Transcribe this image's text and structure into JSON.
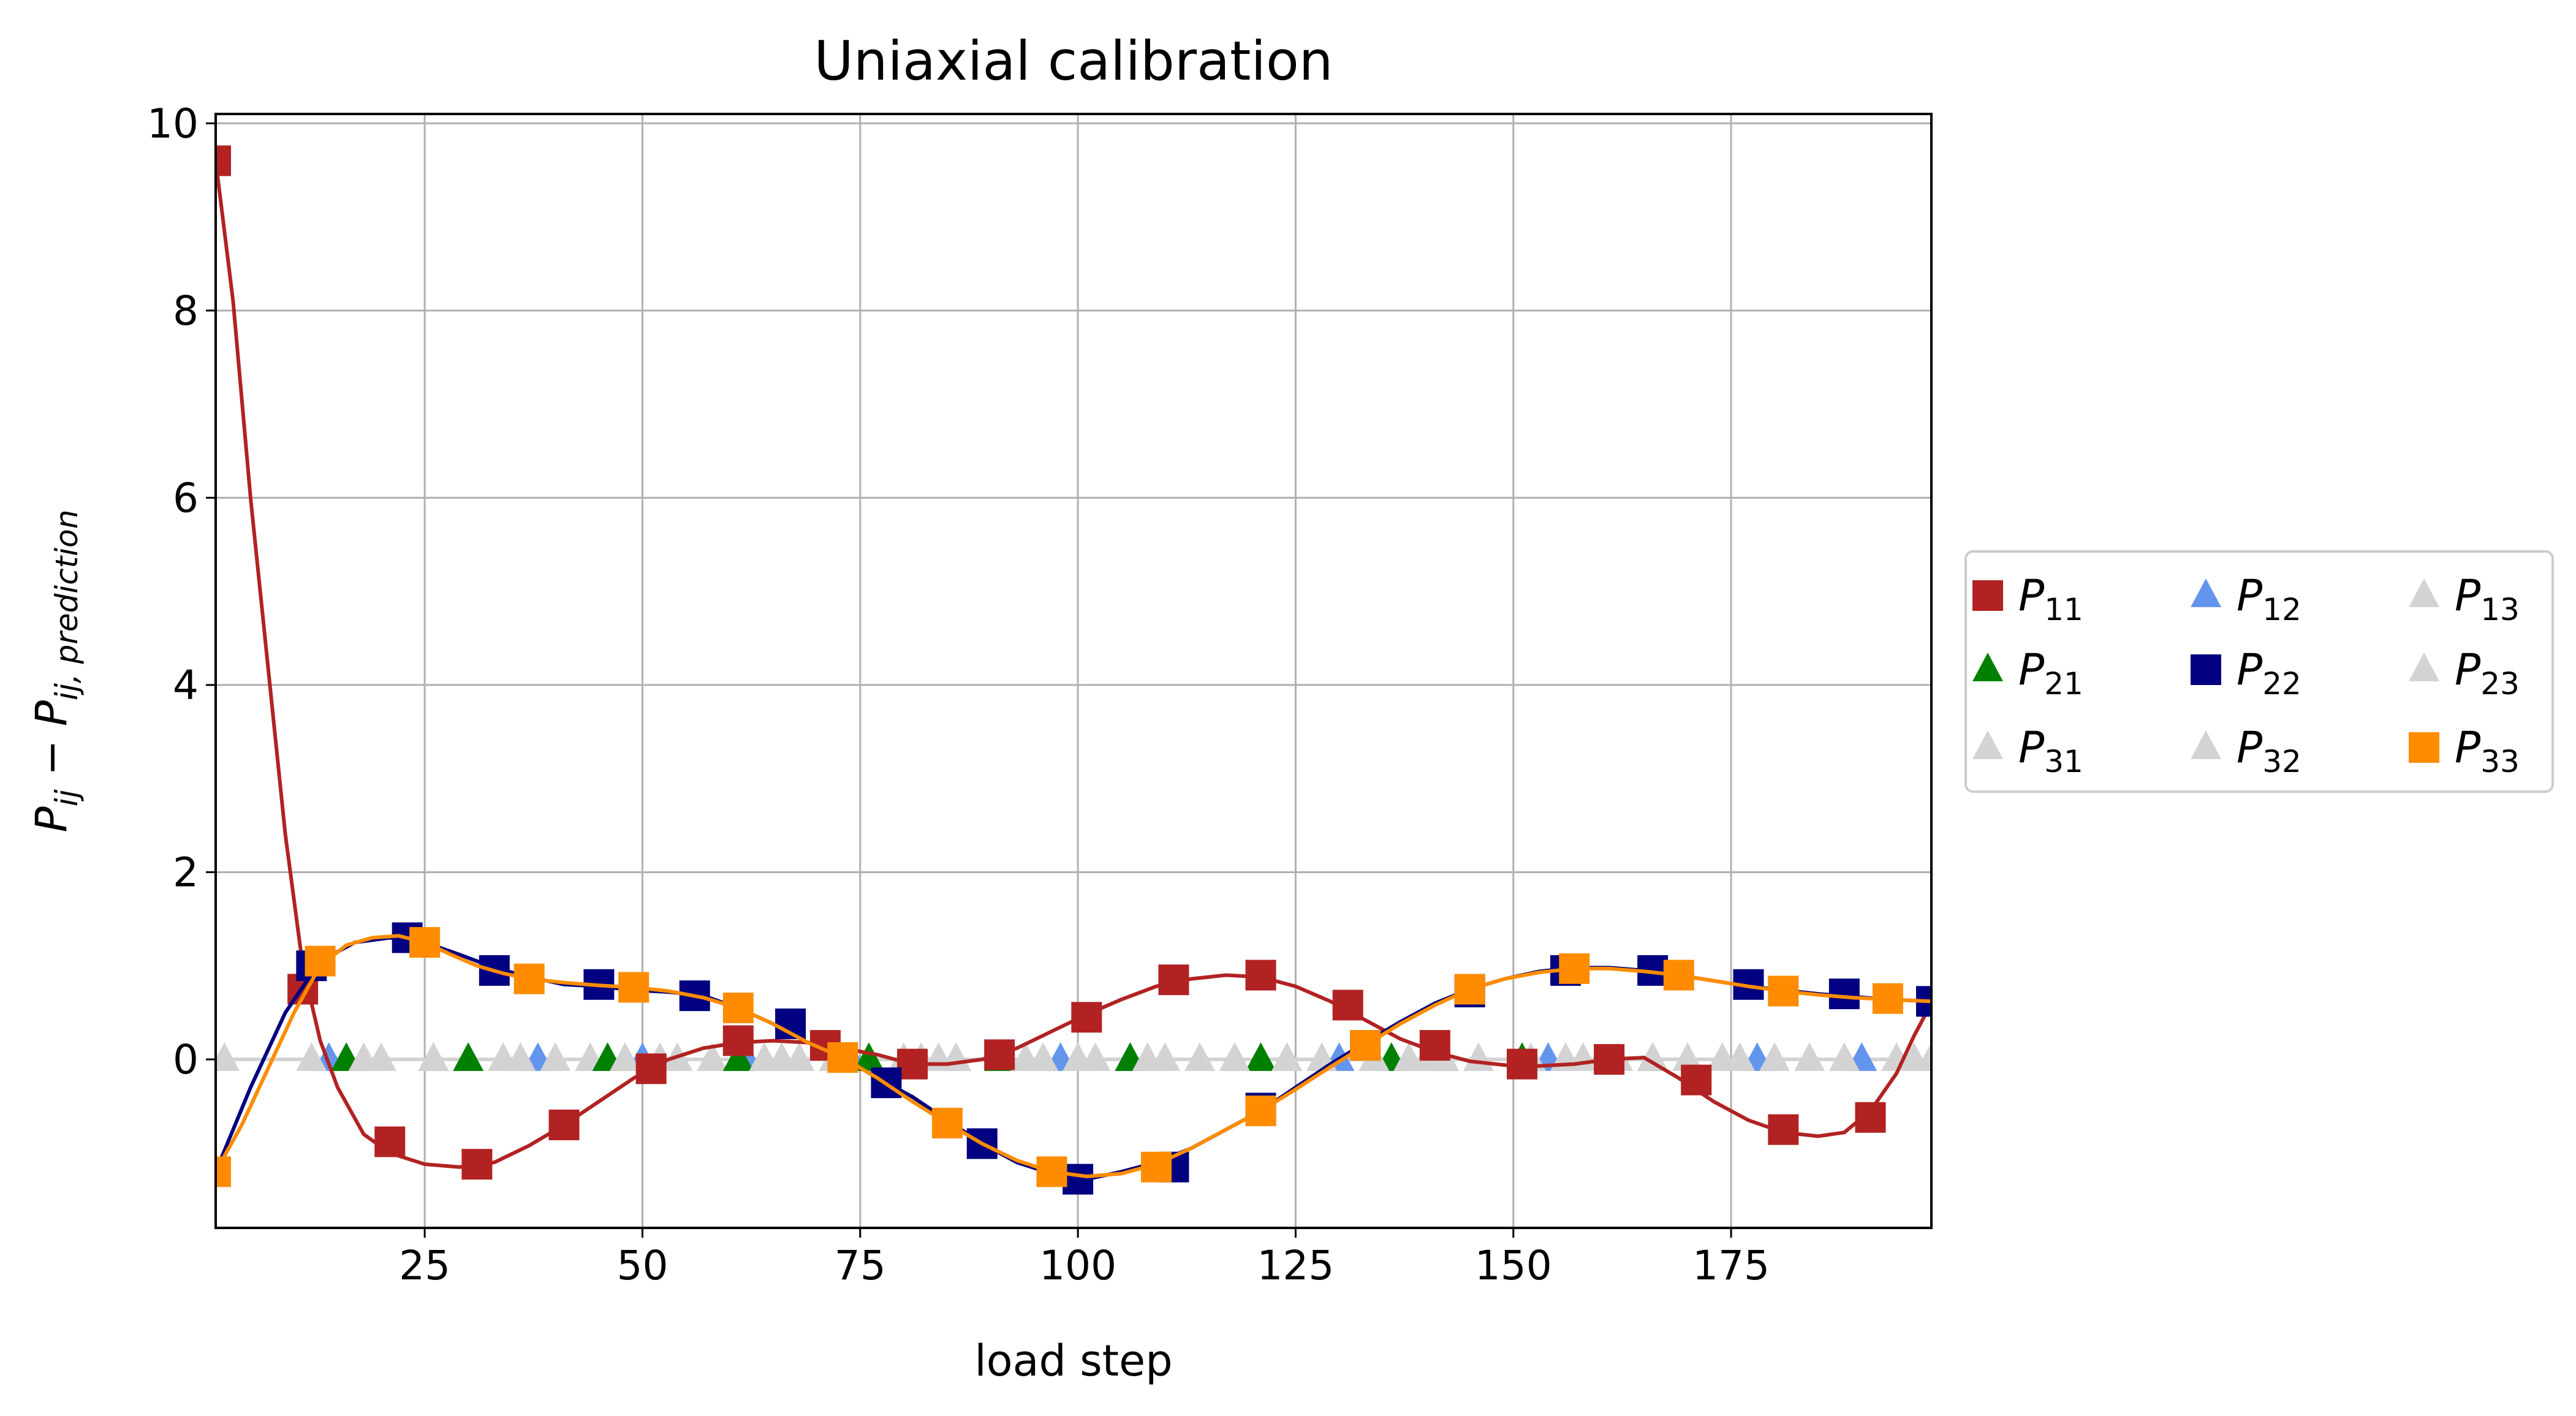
{
  "chart_data": {
    "type": "line",
    "title": "Uniaxial calibration",
    "xlabel": "load step",
    "ylabel": {
      "main": "P",
      "main_sub": "ij",
      "minus": " − P",
      "pred_sub": "ij, prediction"
    },
    "xlim": [
      1,
      198
    ],
    "ylim": [
      -1.8,
      10.1
    ],
    "xticks": [
      25,
      50,
      75,
      100,
      125,
      150,
      175
    ],
    "yticks": [
      0,
      2,
      4,
      6,
      8,
      10
    ],
    "grid": true,
    "legend": {
      "placement": "right-outside",
      "columns": 3
    },
    "series": [
      {
        "name": "P11",
        "label": "P",
        "sub": "11",
        "color": "#b22222",
        "marker": "square",
        "curve": [
          [
            1,
            9.6
          ],
          [
            3,
            8.1
          ],
          [
            5,
            6.0
          ],
          [
            7,
            4.2
          ],
          [
            9,
            2.4
          ],
          [
            11,
            1.0
          ],
          [
            13,
            0.2
          ],
          [
            15,
            -0.3
          ],
          [
            18,
            -0.8
          ],
          [
            21,
            -1.0
          ],
          [
            25,
            -1.12
          ],
          [
            29,
            -1.15
          ],
          [
            33,
            -1.1
          ],
          [
            37,
            -0.92
          ],
          [
            41,
            -0.7
          ],
          [
            45,
            -0.45
          ],
          [
            49,
            -0.2
          ],
          [
            53,
            0.0
          ],
          [
            57,
            0.12
          ],
          [
            61,
            0.18
          ],
          [
            65,
            0.2
          ],
          [
            69,
            0.18
          ],
          [
            73,
            0.12
          ],
          [
            77,
            0.05
          ],
          [
            81,
            -0.05
          ],
          [
            85,
            -0.05
          ],
          [
            89,
            0.0
          ],
          [
            93,
            0.12
          ],
          [
            97,
            0.3
          ],
          [
            101,
            0.48
          ],
          [
            105,
            0.64
          ],
          [
            109,
            0.78
          ],
          [
            113,
            0.86
          ],
          [
            117,
            0.9
          ],
          [
            121,
            0.88
          ],
          [
            125,
            0.78
          ],
          [
            129,
            0.62
          ],
          [
            133,
            0.42
          ],
          [
            137,
            0.22
          ],
          [
            141,
            0.08
          ],
          [
            145,
            -0.02
          ],
          [
            149,
            -0.06
          ],
          [
            153,
            -0.07
          ],
          [
            157,
            -0.05
          ],
          [
            161,
            0.0
          ],
          [
            165,
            0.02
          ],
          [
            169,
            -0.2
          ],
          [
            173,
            -0.45
          ],
          [
            177,
            -0.65
          ],
          [
            181,
            -0.78
          ],
          [
            185,
            -0.82
          ],
          [
            188,
            -0.78
          ],
          [
            191,
            -0.55
          ],
          [
            194,
            -0.15
          ],
          [
            196,
            0.25
          ],
          [
            198,
            0.6
          ]
        ],
        "markers": [
          [
            1,
            9.6
          ],
          [
            11,
            0.75
          ],
          [
            21,
            -0.88
          ],
          [
            31,
            -1.12
          ],
          [
            41,
            -0.7
          ],
          [
            51,
            -0.1
          ],
          [
            61,
            0.2
          ],
          [
            71,
            0.15
          ],
          [
            81,
            -0.05
          ],
          [
            91,
            0.05
          ],
          [
            101,
            0.45
          ],
          [
            111,
            0.85
          ],
          [
            121,
            0.9
          ],
          [
            131,
            0.58
          ],
          [
            141,
            0.15
          ],
          [
            151,
            -0.05
          ],
          [
            161,
            0.0
          ],
          [
            171,
            -0.22
          ],
          [
            181,
            -0.75
          ],
          [
            191,
            -0.62
          ]
        ]
      },
      {
        "name": "P12",
        "label": "P",
        "sub": "12",
        "color": "#6495ed",
        "marker": "triangle",
        "markers": [
          [
            14,
            0
          ],
          [
            26,
            0
          ],
          [
            38,
            0
          ],
          [
            50,
            0
          ],
          [
            62,
            0
          ],
          [
            74,
            0
          ],
          [
            86,
            0
          ],
          [
            98,
            0
          ],
          [
            106,
            0
          ],
          [
            118,
            0
          ],
          [
            130,
            0
          ],
          [
            142,
            0
          ],
          [
            154,
            0
          ],
          [
            166,
            0
          ],
          [
            178,
            0
          ],
          [
            190,
            0
          ]
        ]
      },
      {
        "name": "P13",
        "label": "P",
        "sub": "13",
        "color": "#d3d3d3",
        "marker": "triangle",
        "markers": [
          [
            2,
            0
          ],
          [
            16,
            0
          ],
          [
            30,
            0
          ],
          [
            44,
            0
          ],
          [
            58,
            0
          ],
          [
            72,
            0
          ],
          [
            86,
            0
          ],
          [
            100,
            0
          ],
          [
            114,
            0
          ],
          [
            128,
            0
          ],
          [
            142,
            0
          ],
          [
            156,
            0
          ],
          [
            170,
            0
          ],
          [
            184,
            0
          ],
          [
            198,
            0
          ]
        ]
      },
      {
        "name": "P21",
        "label": "P",
        "sub": "21",
        "color": "#008000",
        "marker": "triangle",
        "markers": [
          [
            16,
            0
          ],
          [
            30,
            0
          ],
          [
            46,
            0
          ],
          [
            61,
            0
          ],
          [
            76,
            0
          ],
          [
            91,
            0
          ],
          [
            106,
            0
          ],
          [
            121,
            0
          ],
          [
            136,
            0
          ],
          [
            151,
            0
          ],
          [
            166,
            0
          ]
        ]
      },
      {
        "name": "P22",
        "label": "P",
        "sub": "22",
        "color": "#000080",
        "marker": "square",
        "curve": [
          [
            1,
            -1.2
          ],
          [
            5,
            -0.3
          ],
          [
            9,
            0.5
          ],
          [
            13,
            1.05
          ],
          [
            17,
            1.25
          ],
          [
            21,
            1.3
          ],
          [
            25,
            1.25
          ],
          [
            29,
            1.12
          ],
          [
            33,
            0.98
          ],
          [
            37,
            0.88
          ],
          [
            41,
            0.8
          ],
          [
            45,
            0.78
          ],
          [
            49,
            0.74
          ],
          [
            53,
            0.72
          ],
          [
            57,
            0.68
          ],
          [
            61,
            0.55
          ],
          [
            65,
            0.38
          ],
          [
            69,
            0.18
          ],
          [
            73,
            0.02
          ],
          [
            77,
            -0.2
          ],
          [
            81,
            -0.4
          ],
          [
            85,
            -0.65
          ],
          [
            89,
            -0.9
          ],
          [
            93,
            -1.1
          ],
          [
            97,
            -1.22
          ],
          [
            101,
            -1.28
          ],
          [
            105,
            -1.2
          ],
          [
            109,
            -1.1
          ],
          [
            113,
            -0.95
          ],
          [
            117,
            -0.75
          ],
          [
            121,
            -0.55
          ],
          [
            125,
            -0.3
          ],
          [
            129,
            -0.05
          ],
          [
            133,
            0.18
          ],
          [
            137,
            0.4
          ],
          [
            141,
            0.6
          ],
          [
            145,
            0.75
          ],
          [
            149,
            0.86
          ],
          [
            153,
            0.94
          ],
          [
            157,
            0.98
          ],
          [
            161,
            0.98
          ],
          [
            165,
            0.95
          ],
          [
            169,
            0.9
          ],
          [
            173,
            0.84
          ],
          [
            177,
            0.78
          ],
          [
            181,
            0.74
          ],
          [
            185,
            0.7
          ],
          [
            189,
            0.67
          ],
          [
            193,
            0.64
          ],
          [
            198,
            0.62
          ]
        ],
        "markers": [
          [
            12,
            1.0
          ],
          [
            23,
            1.3
          ],
          [
            33,
            0.95
          ],
          [
            45,
            0.8
          ],
          [
            56,
            0.68
          ],
          [
            67,
            0.38
          ],
          [
            78,
            -0.25
          ],
          [
            89,
            -0.9
          ],
          [
            100,
            -1.28
          ],
          [
            111,
            -1.15
          ],
          [
            121,
            -0.52
          ],
          [
            133,
            0.15
          ],
          [
            145,
            0.72
          ],
          [
            156,
            0.95
          ],
          [
            166,
            0.95
          ],
          [
            177,
            0.8
          ],
          [
            188,
            0.7
          ],
          [
            198,
            0.62
          ]
        ]
      },
      {
        "name": "P23",
        "label": "P",
        "sub": "23",
        "color": "#d3d3d3",
        "marker": "triangle",
        "markers": [
          [
            12,
            0
          ],
          [
            26,
            0
          ],
          [
            40,
            0
          ],
          [
            54,
            0
          ],
          [
            68,
            0
          ],
          [
            82,
            0
          ],
          [
            96,
            0
          ],
          [
            110,
            0
          ],
          [
            124,
            0
          ],
          [
            138,
            0
          ],
          [
            152,
            0
          ],
          [
            166,
            0
          ],
          [
            180,
            0
          ],
          [
            194,
            0
          ]
        ]
      },
      {
        "name": "P31",
        "label": "P",
        "sub": "31",
        "color": "#d3d3d3",
        "marker": "triangle",
        "markers": [
          [
            18,
            0
          ],
          [
            34,
            0
          ],
          [
            48,
            0
          ],
          [
            64,
            0
          ],
          [
            80,
            0
          ],
          [
            94,
            0
          ],
          [
            108,
            0
          ],
          [
            124,
            0
          ],
          [
            140,
            0
          ],
          [
            158,
            0
          ],
          [
            174,
            0
          ],
          [
            188,
            0
          ]
        ]
      },
      {
        "name": "P32",
        "label": "P",
        "sub": "32",
        "color": "#d3d3d3",
        "marker": "triangle",
        "markers": [
          [
            20,
            0
          ],
          [
            36,
            0
          ],
          [
            52,
            0
          ],
          [
            66,
            0
          ],
          [
            84,
            0
          ],
          [
            102,
            0
          ],
          [
            118,
            0
          ],
          [
            134,
            0
          ],
          [
            146,
            0
          ],
          [
            162,
            0
          ],
          [
            176,
            0
          ],
          [
            196,
            0
          ]
        ]
      },
      {
        "name": "P33",
        "label": "P",
        "sub": "33",
        "color": "#ff8c00",
        "marker": "square",
        "curve": [
          [
            1,
            -1.2
          ],
          [
            4,
            -0.7
          ],
          [
            7,
            -0.1
          ],
          [
            10,
            0.5
          ],
          [
            13,
            1.0
          ],
          [
            16,
            1.22
          ],
          [
            19,
            1.3
          ],
          [
            22,
            1.32
          ],
          [
            25,
            1.25
          ],
          [
            28,
            1.12
          ],
          [
            31,
            1.0
          ],
          [
            34,
            0.92
          ],
          [
            37,
            0.86
          ],
          [
            41,
            0.82
          ],
          [
            45,
            0.79
          ],
          [
            49,
            0.77
          ],
          [
            53,
            0.73
          ],
          [
            57,
            0.66
          ],
          [
            61,
            0.55
          ],
          [
            65,
            0.38
          ],
          [
            69,
            0.18
          ],
          [
            73,
            0.02
          ],
          [
            77,
            -0.2
          ],
          [
            81,
            -0.45
          ],
          [
            85,
            -0.68
          ],
          [
            89,
            -0.9
          ],
          [
            93,
            -1.08
          ],
          [
            97,
            -1.2
          ],
          [
            101,
            -1.25
          ],
          [
            105,
            -1.22
          ],
          [
            109,
            -1.12
          ],
          [
            113,
            -0.95
          ],
          [
            117,
            -0.75
          ],
          [
            121,
            -0.55
          ],
          [
            125,
            -0.32
          ],
          [
            129,
            -0.08
          ],
          [
            133,
            0.15
          ],
          [
            137,
            0.38
          ],
          [
            141,
            0.58
          ],
          [
            145,
            0.75
          ],
          [
            149,
            0.86
          ],
          [
            153,
            0.93
          ],
          [
            157,
            0.97
          ],
          [
            161,
            0.97
          ],
          [
            165,
            0.94
          ],
          [
            169,
            0.9
          ],
          [
            173,
            0.84
          ],
          [
            177,
            0.78
          ],
          [
            181,
            0.73
          ],
          [
            185,
            0.69
          ],
          [
            189,
            0.66
          ],
          [
            193,
            0.64
          ],
          [
            198,
            0.62
          ]
        ],
        "markers": [
          [
            1,
            -1.2
          ],
          [
            13,
            1.05
          ],
          [
            25,
            1.25
          ],
          [
            37,
            0.86
          ],
          [
            49,
            0.77
          ],
          [
            61,
            0.55
          ],
          [
            73,
            0.02
          ],
          [
            85,
            -0.68
          ],
          [
            97,
            -1.2
          ],
          [
            109,
            -1.15
          ],
          [
            121,
            -0.55
          ],
          [
            133,
            0.15
          ],
          [
            145,
            0.75
          ],
          [
            157,
            0.97
          ],
          [
            169,
            0.9
          ],
          [
            181,
            0.73
          ],
          [
            193,
            0.65
          ]
        ]
      }
    ]
  }
}
